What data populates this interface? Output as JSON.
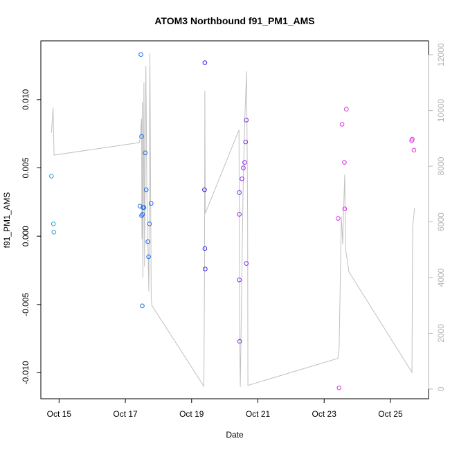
{
  "chart_data": {
    "type": "scatter",
    "title": "ATOM3 Northbound f91_PM1_AMS",
    "xlabel": "Date",
    "ylabel": "f91_PM1_AMS",
    "xlim": [
      14.45,
      26.15
    ],
    "ylim": [
      -0.0119,
      0.0143
    ],
    "x_ticks": [
      {
        "value": 15,
        "label": "Oct 15"
      },
      {
        "value": 17,
        "label": "Oct 17"
      },
      {
        "value": 19,
        "label": "Oct 19"
      },
      {
        "value": 21,
        "label": "Oct 21"
      },
      {
        "value": 23,
        "label": "Oct 23"
      },
      {
        "value": 25,
        "label": "Oct 25"
      }
    ],
    "y_ticks": [
      {
        "value": -0.01,
        "label": "-0.010"
      },
      {
        "value": -0.005,
        "label": "-0.005"
      },
      {
        "value": 0.0,
        "label": "0.000"
      },
      {
        "value": 0.005,
        "label": "0.005"
      },
      {
        "value": 0.01,
        "label": "0.010"
      }
    ],
    "y2lim": [
      -350,
      12500
    ],
    "y2_ticks": [
      {
        "value": 0,
        "label": "0"
      },
      {
        "value": 2000,
        "label": "2000"
      },
      {
        "value": 4000,
        "label": "4000"
      },
      {
        "value": 6000,
        "label": "6000"
      },
      {
        "value": 8000,
        "label": "8000"
      },
      {
        "value": 10000,
        "label": "10000"
      },
      {
        "value": 12000,
        "label": "12000"
      }
    ],
    "points": [
      {
        "x": 14.77,
        "y": 0.0044,
        "color": "#1ea0e6"
      },
      {
        "x": 14.83,
        "y": 0.0009,
        "color": "#1ea0e6"
      },
      {
        "x": 14.84,
        "y": 0.0003,
        "color": "#1ea0e6"
      },
      {
        "x": 17.47,
        "y": 0.0133,
        "color": "#1c6be8"
      },
      {
        "x": 17.44,
        "y": 0.0022,
        "color": "#1c6be8"
      },
      {
        "x": 17.49,
        "y": 0.0073,
        "color": "#1c6be8"
      },
      {
        "x": 17.49,
        "y": 0.0015,
        "color": "#1c6be8"
      },
      {
        "x": 17.52,
        "y": 0.0016,
        "color": "#1c6be8"
      },
      {
        "x": 17.53,
        "y": 0.0021,
        "color": "#1c6be8"
      },
      {
        "x": 17.56,
        "y": 0.0021,
        "color": "#1c6be8"
      },
      {
        "x": 17.51,
        "y": -0.0051,
        "color": "#1c6be8"
      },
      {
        "x": 17.6,
        "y": 0.0061,
        "color": "#1c6be8"
      },
      {
        "x": 17.63,
        "y": 0.0034,
        "color": "#1c6be8"
      },
      {
        "x": 17.68,
        "y": -0.0004,
        "color": "#1c6be8"
      },
      {
        "x": 17.7,
        "y": -0.0015,
        "color": "#1c6be8"
      },
      {
        "x": 17.73,
        "y": 0.0009,
        "color": "#1c6be8"
      },
      {
        "x": 17.78,
        "y": 0.0024,
        "color": "#1c6be8"
      },
      {
        "x": 19.4,
        "y": 0.0127,
        "color": "#2a1ff0"
      },
      {
        "x": 19.39,
        "y": 0.0034,
        "color": "#2a1ff0"
      },
      {
        "x": 19.4,
        "y": -0.0009,
        "color": "#2a1ff0"
      },
      {
        "x": 19.41,
        "y": -0.0024,
        "color": "#2a1ff0"
      },
      {
        "x": 20.44,
        "y": 0.0032,
        "color": "#8a2be2"
      },
      {
        "x": 20.44,
        "y": 0.0016,
        "color": "#8a2be2"
      },
      {
        "x": 20.44,
        "y": -0.0032,
        "color": "#8a2be2"
      },
      {
        "x": 20.45,
        "y": -0.0077,
        "color": "#8a2be2"
      },
      {
        "x": 20.52,
        "y": 0.0042,
        "color": "#8a2be2"
      },
      {
        "x": 20.56,
        "y": 0.005,
        "color": "#8a2be2"
      },
      {
        "x": 20.6,
        "y": 0.0054,
        "color": "#8a2be2"
      },
      {
        "x": 20.63,
        "y": 0.0069,
        "color": "#8a2be2"
      },
      {
        "x": 20.65,
        "y": 0.0085,
        "color": "#8a2be2"
      },
      {
        "x": 20.65,
        "y": -0.002,
        "color": "#8a2be2"
      },
      {
        "x": 23.42,
        "y": 0.0013,
        "color": "#d22ee0"
      },
      {
        "x": 23.45,
        "y": -0.0111,
        "color": "#d22ee0"
      },
      {
        "x": 23.54,
        "y": 0.0082,
        "color": "#d22ee0"
      },
      {
        "x": 23.61,
        "y": 0.0054,
        "color": "#d22ee0"
      },
      {
        "x": 23.62,
        "y": 0.002,
        "color": "#d22ee0"
      },
      {
        "x": 23.67,
        "y": 0.0093,
        "color": "#d22ee0"
      },
      {
        "x": 25.64,
        "y": 0.007,
        "color": "#e233e0"
      },
      {
        "x": 25.66,
        "y": 0.0071,
        "color": "#e233e0"
      },
      {
        "x": 25.71,
        "y": 0.0063,
        "color": "#e233e0"
      }
    ],
    "altitude_series": {
      "axis": "right",
      "color": "#c0c0c0",
      "points": [
        [
          14.77,
          9200
        ],
        [
          14.82,
          10100
        ],
        [
          14.85,
          8400
        ],
        [
          17.43,
          8850
        ],
        [
          17.49,
          9700
        ],
        [
          17.5,
          5400
        ],
        [
          17.51,
          10300
        ],
        [
          17.53,
          4000
        ],
        [
          17.56,
          11000
        ],
        [
          17.58,
          4400
        ],
        [
          17.62,
          11600
        ],
        [
          17.65,
          7000
        ],
        [
          17.71,
          3500
        ],
        [
          17.74,
          12050
        ],
        [
          17.78,
          3300
        ],
        [
          17.8,
          3000
        ],
        [
          19.37,
          100
        ],
        [
          19.39,
          4200
        ],
        [
          19.4,
          10700
        ],
        [
          19.41,
          6300
        ],
        [
          20.43,
          9300
        ],
        [
          20.45,
          2000
        ],
        [
          20.47,
          80
        ],
        [
          20.55,
          7000
        ],
        [
          20.6,
          9600
        ],
        [
          20.66,
          11400
        ],
        [
          20.69,
          6000
        ],
        [
          20.7,
          130
        ],
        [
          23.41,
          1100
        ],
        [
          23.45,
          1400
        ],
        [
          23.52,
          6200
        ],
        [
          23.56,
          5200
        ],
        [
          23.62,
          7700
        ],
        [
          23.65,
          5000
        ],
        [
          23.75,
          4200
        ],
        [
          25.65,
          600
        ],
        [
          25.67,
          5800
        ],
        [
          25.73,
          6500
        ]
      ]
    }
  }
}
